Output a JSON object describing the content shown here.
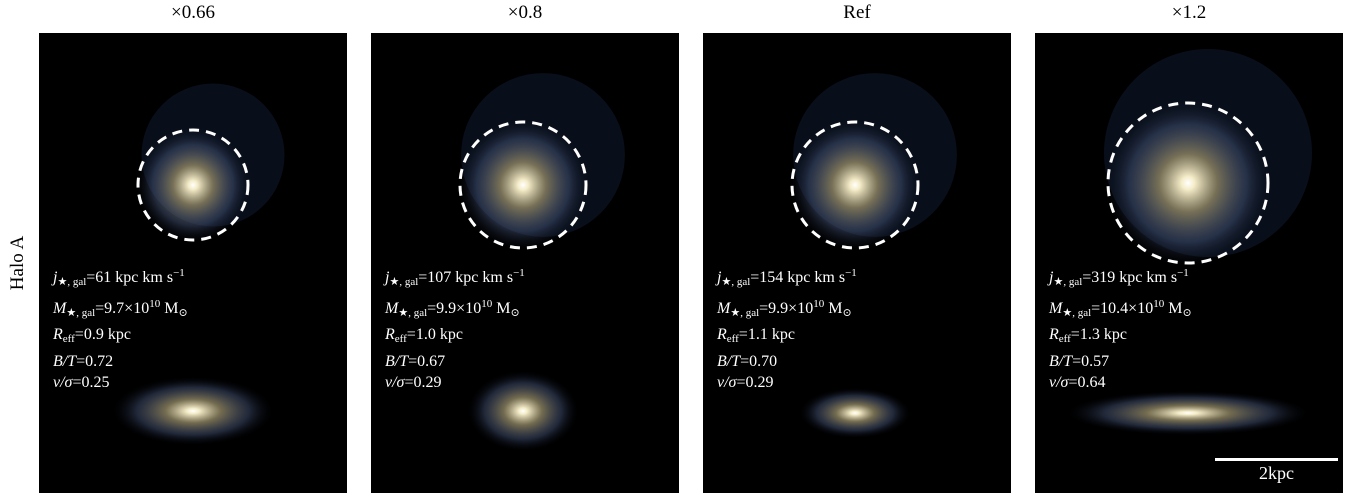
{
  "row_label": "Halo A",
  "labels": {
    "j_sym": "j",
    "j_sub": "★, gal",
    "eq": "=",
    "j_unit": "kpc km s",
    "j_exp": "−1",
    "m_sym": "M",
    "m_sub": "★, gal",
    "m_times": "×10",
    "m_exp": "10",
    "m_unit": "M",
    "m_unit_sub": "⊙",
    "r_sym": "R",
    "r_sub": "eff",
    "r_unit": "kpc",
    "bt": "B/T",
    "vs": "v/σ"
  },
  "panels": [
    {
      "title": "×0.66",
      "j": "61",
      "m": "9.7",
      "r": "0.9",
      "bt": "0.72",
      "vs": "0.25"
    },
    {
      "title": "×0.8",
      "j": "107",
      "m": "9.9",
      "r": "1.0",
      "bt": "0.67",
      "vs": "0.29"
    },
    {
      "title": "Ref",
      "j": "154",
      "m": "9.9",
      "r": "1.1",
      "bt": "0.70",
      "vs": "0.29"
    },
    {
      "title": "×1.2",
      "j": "319",
      "m": "10.4",
      "r": "1.3",
      "bt": "0.57",
      "vs": "0.64"
    }
  ],
  "scale_bar": "2kpc"
}
